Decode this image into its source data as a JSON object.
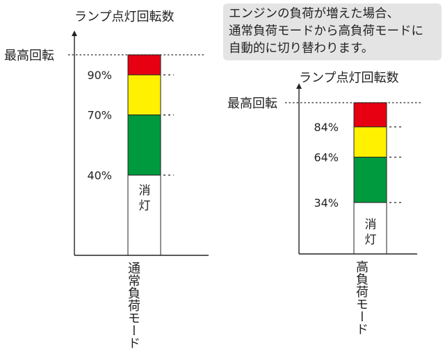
{
  "note": {
    "lines": [
      "エンジンの負荷が増えた場合、",
      "通常負荷モードから高負荷モードに",
      "自動的に切り替わります。"
    ]
  },
  "colors": {
    "red": "#e60012",
    "yellow": "#fff100",
    "green": "#009a3e",
    "off": "#ffffff"
  },
  "panels": [
    {
      "id": "normal",
      "axis_title": "ランプ点灯回転数",
      "max_label": "最高回転",
      "off_label": [
        "消",
        "灯"
      ],
      "mode_label": [
        "通常負荷",
        "モード"
      ],
      "thresholds": [
        {
          "label": "90%",
          "value": 90
        },
        {
          "label": "70%",
          "value": 70
        },
        {
          "label": "40%",
          "value": 40
        }
      ]
    },
    {
      "id": "high",
      "axis_title": "ランプ点灯回転数",
      "max_label": "最高回転",
      "off_label": [
        "消",
        "灯"
      ],
      "mode_label": [
        "高負荷",
        "モード"
      ],
      "thresholds": [
        {
          "label": "84%",
          "value": 84
        },
        {
          "label": "64%",
          "value": 64
        },
        {
          "label": "34%",
          "value": 34
        }
      ]
    }
  ]
}
